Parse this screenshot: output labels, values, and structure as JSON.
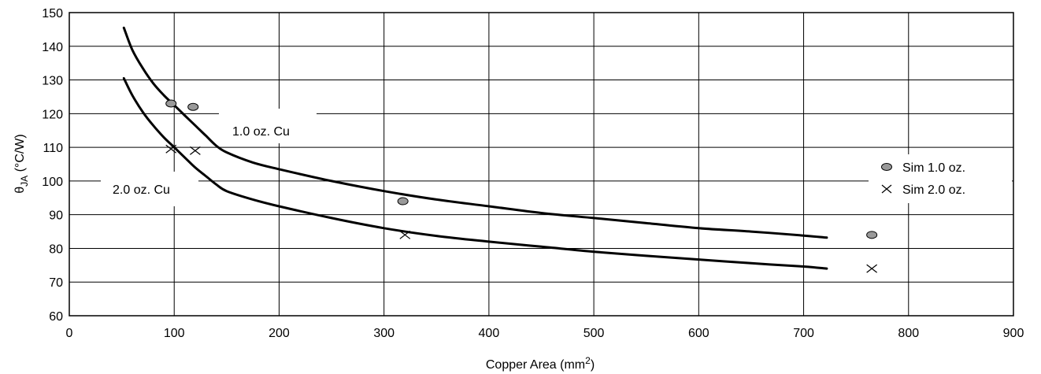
{
  "chart_data": {
    "type": "line",
    "xlabel": "Copper Area (mm",
    "xlabel_sup": "2",
    "xlabel_end": ")",
    "ylabel_theta": "θ",
    "ylabel_sub": "JA",
    "ylabel_unit": " (°C/W)",
    "xlim": [
      0,
      900
    ],
    "ylim": [
      60,
      150
    ],
    "xticks": [
      0,
      100,
      200,
      300,
      400,
      500,
      600,
      700,
      800,
      900
    ],
    "yticks": [
      60,
      70,
      80,
      90,
      100,
      110,
      120,
      130,
      140,
      150
    ],
    "grid": true,
    "series": [
      {
        "name": "1.0 oz. Cu",
        "x": [
          52,
          60,
          70,
          80,
          90,
          100,
          110,
          120,
          130,
          140,
          150,
          175,
          200,
          250,
          300,
          350,
          400,
          450,
          500,
          550,
          600,
          650,
          700,
          722
        ],
        "y": [
          145.5,
          139,
          133.5,
          129,
          125.5,
          122.5,
          119.5,
          116.5,
          113.5,
          110.5,
          108.5,
          105.5,
          103.5,
          100,
          97,
          94.5,
          92.5,
          90.5,
          89,
          87.5,
          86,
          85,
          83.8,
          83.2
        ]
      },
      {
        "name": "2.0 oz. Cu",
        "x": [
          52,
          60,
          70,
          80,
          90,
          100,
          110,
          120,
          130,
          140,
          150,
          175,
          200,
          250,
          300,
          350,
          400,
          450,
          500,
          550,
          600,
          650,
          700,
          722
        ],
        "y": [
          130.5,
          125.5,
          120.5,
          116.5,
          113,
          110,
          107,
          104,
          101.5,
          99,
          97,
          94.5,
          92.5,
          89,
          86,
          83.7,
          82,
          80.5,
          79,
          77.8,
          76.7,
          75.6,
          74.6,
          74
        ]
      }
    ],
    "markers": [
      {
        "name": "Sim 1.0 oz.",
        "shape": "circle",
        "points": [
          [
            97,
            123
          ],
          [
            118,
            122
          ],
          [
            318,
            94
          ],
          [
            765,
            84
          ]
        ]
      },
      {
        "name": "Sim 2.0 oz.",
        "shape": "x",
        "points": [
          [
            97,
            109.5
          ],
          [
            120,
            109
          ],
          [
            320,
            84
          ],
          [
            765,
            74
          ]
        ]
      }
    ],
    "colors": {
      "line": "#000000",
      "grid": "#000000",
      "marker_fill": "#999999"
    }
  }
}
